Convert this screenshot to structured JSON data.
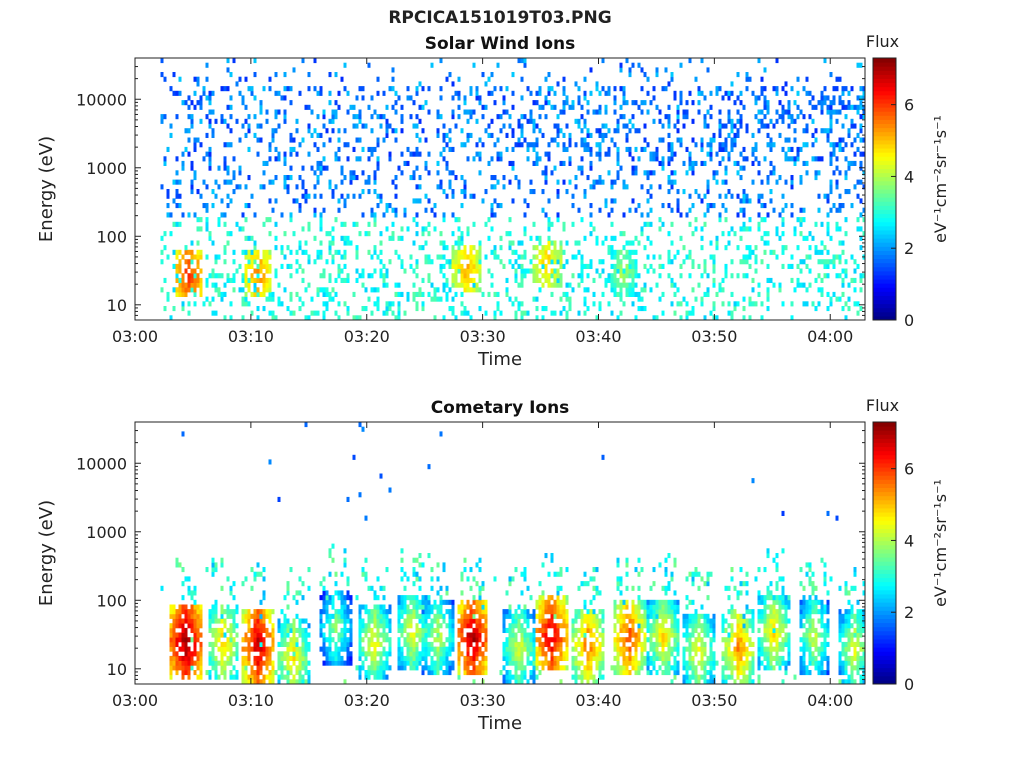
{
  "figure": {
    "title": "RPCICA151019T03.PNG"
  },
  "chart_data": [
    {
      "type": "heatmap",
      "title": "Solar Wind Ions",
      "xlabel": "Time",
      "ylabel": "Energy (eV)",
      "x_ticks": [
        "03:00",
        "03:10",
        "03:20",
        "03:30",
        "03:40",
        "03:50",
        "04:00"
      ],
      "x_range_minutes": [
        0,
        63
      ],
      "y_scale": "log",
      "y_ticks": [
        10,
        100,
        1000,
        10000
      ],
      "y_tick_labels": [
        "10",
        "100",
        "1000",
        "10000"
      ],
      "y_range": [
        6,
        40000
      ],
      "colorbar": {
        "label_top": "Flux",
        "label": "eV⁻¹cm⁻²sr⁻¹s⁻¹",
        "range": [
          0,
          7.3
        ],
        "ticks": [
          0,
          2,
          4,
          6
        ]
      },
      "colormap": "jet",
      "data_start_minute": 2.2,
      "hotspots": [
        {
          "minute": 4.5,
          "energy": 28,
          "flux": 5.8
        },
        {
          "minute": 10.5,
          "energy": 28,
          "flux": 5.2
        },
        {
          "minute": 28.5,
          "energy": 35,
          "flux": 5.0
        },
        {
          "minute": 35.5,
          "energy": 40,
          "flux": 4.8
        },
        {
          "minute": 42,
          "energy": 30,
          "flux": 3.8
        }
      ]
    },
    {
      "type": "heatmap",
      "title": "Cometary Ions",
      "xlabel": "Time",
      "ylabel": "Energy (eV)",
      "x_ticks": [
        "03:00",
        "03:10",
        "03:20",
        "03:30",
        "03:40",
        "03:50",
        "04:00"
      ],
      "x_range_minutes": [
        0,
        63
      ],
      "y_scale": "log",
      "y_ticks": [
        10,
        100,
        1000,
        10000
      ],
      "y_tick_labels": [
        "10",
        "100",
        "1000",
        "10000"
      ],
      "y_range": [
        6,
        40000
      ],
      "colorbar": {
        "label_top": "Flux",
        "label": "eV⁻¹cm⁻²sr⁻¹s⁻¹",
        "range": [
          0,
          7.3
        ],
        "ticks": [
          0,
          2,
          4,
          6
        ]
      },
      "colormap": "jet",
      "data_start_minute": 2.2,
      "bursts": [
        {
          "minute": 4.3,
          "energy": 25,
          "flux": 7.0
        },
        {
          "minute": 7.5,
          "energy": 25,
          "flux": 4.8
        },
        {
          "minute": 10.5,
          "energy": 22,
          "flux": 6.6
        },
        {
          "minute": 13.5,
          "energy": 15,
          "flux": 4.6
        },
        {
          "minute": 17.2,
          "energy": 40,
          "flux": 3.6
        },
        {
          "minute": 20.5,
          "energy": 25,
          "flux": 4.4
        },
        {
          "minute": 23.8,
          "energy": 35,
          "flux": 4.3
        },
        {
          "minute": 26,
          "energy": 30,
          "flux": 4.0
        },
        {
          "minute": 29,
          "energy": 28,
          "flux": 6.8
        },
        {
          "minute": 33,
          "energy": 20,
          "flux": 4.2
        },
        {
          "minute": 35.8,
          "energy": 32,
          "flux": 6.5
        },
        {
          "minute": 39,
          "energy": 22,
          "flux": 5.4
        },
        {
          "minute": 42.5,
          "energy": 28,
          "flux": 5.8
        },
        {
          "minute": 45.5,
          "energy": 30,
          "flux": 4.6
        },
        {
          "minute": 48.5,
          "energy": 18,
          "flux": 4.4
        },
        {
          "minute": 52,
          "energy": 20,
          "flux": 5.2
        },
        {
          "minute": 55,
          "energy": 35,
          "flux": 4.6
        },
        {
          "minute": 58.5,
          "energy": 30,
          "flux": 4.0
        },
        {
          "minute": 62,
          "energy": 20,
          "flux": 4.2
        }
      ]
    }
  ]
}
